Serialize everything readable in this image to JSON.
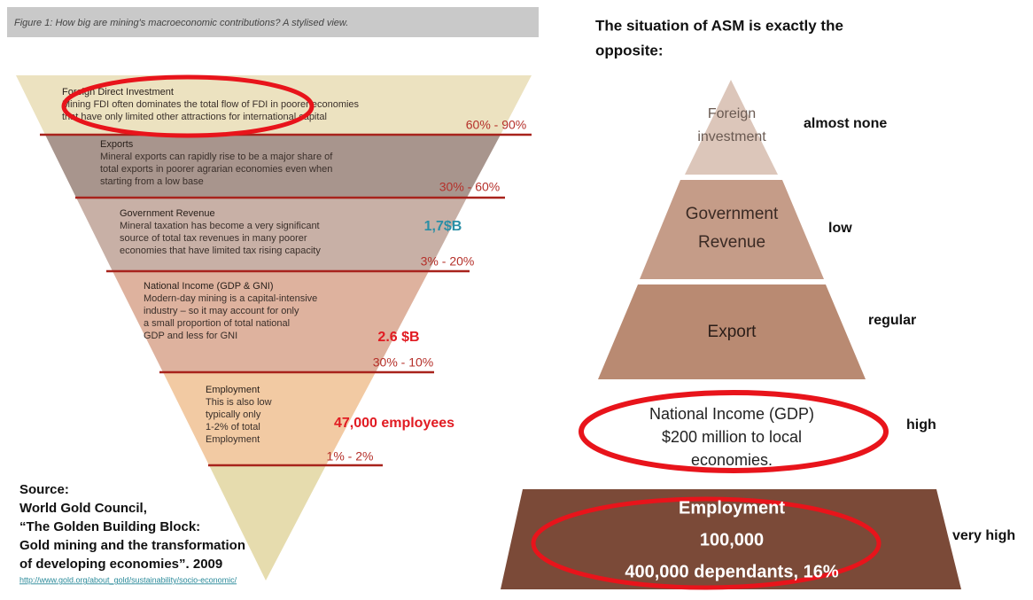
{
  "caption": "Figure 1: How big are mining's macroeconomic contributions? A stylised view.",
  "funnel": [
    {
      "title": "Foreign Direct Investment",
      "lines": [
        "Mining FDI often dominates the total flow of FDI in poorer economies",
        "that have only limited other attractions for international capital"
      ],
      "range": "60% - 90%"
    },
    {
      "title": "Exports",
      "lines": [
        "Mineral exports can rapidly rise to be a major share of",
        "total exports in poorer agrarian economies even when",
        "starting from a low base"
      ],
      "range": "30% - 60%"
    },
    {
      "title": "Government Revenue",
      "lines": [
        "Mineral taxation has become a very significant",
        "source of total tax revenues in many poorer",
        "economies that have limited tax rising capacity"
      ],
      "range": "3% - 20%",
      "figure": "1,7$B"
    },
    {
      "title": "National Income (GDP & GNI)",
      "lines": [
        "Modern-day mining is a capital-intensive",
        "industry – so it may account for only",
        "a small proportion of total national",
        "GDP and less for GNI"
      ],
      "range": "30% - 10%",
      "figure": "2.6 $B"
    },
    {
      "title": "Employment",
      "lines": [
        "This is also low",
        "typically only",
        "1-2% of total",
        "Employment"
      ],
      "range": "1% - 2%",
      "figure": "47,000 employees"
    }
  ],
  "source": {
    "lines": [
      "Source:",
      "World Gold Council,",
      "“The Golden Building Block:",
      "Gold  mining and the transformation",
      "of  developing economies”. 2009"
    ],
    "link": "http://www.gold.org/about_gold/sustainability/socio-economic/"
  },
  "heading": [
    "The situation of ASM is exactly the",
    "opposite:"
  ],
  "pyramid": [
    {
      "lines": [
        "Foreign",
        "investment"
      ],
      "rating": "almost none"
    },
    {
      "lines": [
        "Government",
        "Revenue"
      ],
      "rating": "low"
    },
    {
      "lines": [
        "Export"
      ],
      "rating": "regular"
    },
    {
      "lines": [
        "National Income (GDP)",
        "$200 million to local",
        "economies."
      ],
      "rating": "high"
    },
    {
      "lines": [
        "Employment",
        "100,000",
        "400,000 dependants, 16%"
      ],
      "rating": "very high"
    }
  ]
}
